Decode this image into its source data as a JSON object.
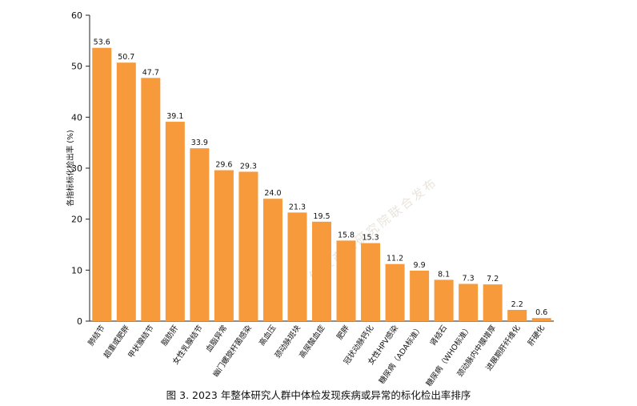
{
  "caption": "图 3. 2023 年整体研究人群中体检发现疾病或异常的标化检出率排序",
  "watermark": "健康产业研究院联合发布",
  "chart_data": {
    "type": "bar",
    "title": "",
    "xlabel": "",
    "ylabel": "各指标标化检出率 (%)",
    "ylim": [
      0,
      60
    ],
    "yticks": [
      0,
      10,
      20,
      30,
      40,
      50,
      60
    ],
    "bar_color": "#F79A3C",
    "categories": [
      "肺结节",
      "超重或肥胖",
      "甲状腺结节",
      "脂肪肝",
      "女性乳腺结节",
      "血脂异常",
      "幽门螺旋杆菌感染",
      "高血压",
      "颈动脉斑块",
      "高尿酸血症",
      "肥胖",
      "冠状动脉钙化",
      "女性HPV感染",
      "糖尿病（ADA标准）",
      "肾结石",
      "糖尿病（WHO标准）",
      "颈动脉内中膜增厚",
      "进展期肝纤维化",
      "肝硬化"
    ],
    "values": [
      53.6,
      50.7,
      47.7,
      39.1,
      33.9,
      29.6,
      29.3,
      24.0,
      21.3,
      19.5,
      15.8,
      15.3,
      11.2,
      9.9,
      8.1,
      7.3,
      7.2,
      2.2,
      0.6
    ],
    "value_labels": [
      "53.6",
      "50.7",
      "47.7",
      "39.1",
      "33.9",
      "29.6",
      "29.3",
      "24.0",
      "21.3",
      "19.5",
      "15.8",
      "15.3",
      "11.2",
      "9.9",
      "8.1",
      "7.3",
      "7.2",
      "2.2",
      "0.6"
    ],
    "grid": false,
    "legend": "none"
  }
}
